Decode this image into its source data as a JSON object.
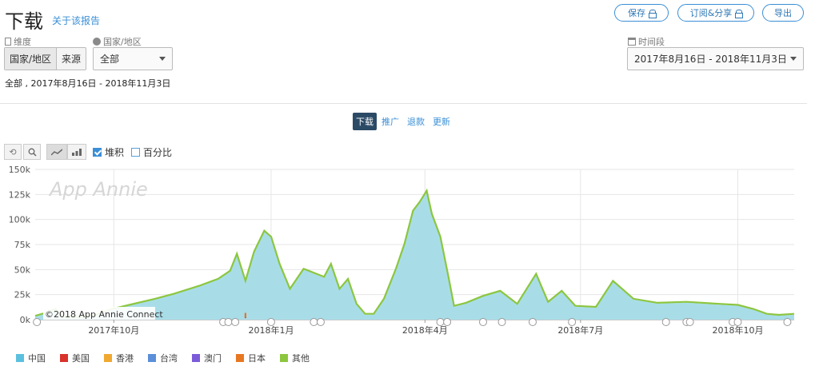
{
  "header": {
    "title": "下载",
    "about_link": "关于该报告",
    "save_label": "保存",
    "subscribe_label": "订阅&分享",
    "export_label": "导出"
  },
  "filters": {
    "dimension_label": "维度",
    "dimension_options": [
      "国家/地区",
      "来源"
    ],
    "country_label": "国家/地区",
    "country_value": "全部",
    "period_label": "时间段",
    "period_value": "2017年8月16日 - 2018年11月3日"
  },
  "summary": "全部 , 2017年8月16日 - 2018年11月3日",
  "tabs": [
    "下载",
    "推广",
    "退款",
    "更新"
  ],
  "active_tab": "下载",
  "toolbar": {
    "stacked_label": "堆积",
    "stacked_checked": true,
    "percent_label": "百分比",
    "percent_checked": false
  },
  "icons": {
    "reset": "undo-icon",
    "zoom": "zoom-icon",
    "line_chart": "line-chart-icon",
    "bar_chart": "bar-chart-icon",
    "lock": "lock-icon",
    "annotation": "speech-bubble-icon"
  },
  "watermark": "App Annie",
  "credit": "©2018 App Annie Connect",
  "colors": {
    "china": "#5bc0de",
    "usa": "#d9332b",
    "hongkong": "#f0a830",
    "taiwan": "#5b8fd9",
    "macau": "#7b5bd9",
    "japan": "#e87722",
    "other": "#8cc63f",
    "area_fill": "#a8dde8",
    "accent": "#3a8fd6"
  },
  "chart_data": {
    "type": "area",
    "stacked": true,
    "ylim": [
      0,
      150000
    ],
    "y_ticks": [
      0,
      25000,
      50000,
      75000,
      100000,
      125000,
      150000
    ],
    "y_tick_labels": [
      "0k",
      "25k",
      "50k",
      "75k",
      "100k",
      "125k",
      "150k"
    ],
    "x_tick_labels": [
      "2017年10月",
      "2018年1月",
      "2018年4月",
      "2018年7月",
      "2018年10月"
    ],
    "x_tick_dates": [
      "2017-10-01",
      "2018-01-01",
      "2018-04-01",
      "2018-07-01",
      "2018-10-01"
    ],
    "xlim": [
      "2017-08-16",
      "2018-11-03"
    ],
    "legend": [
      "中国",
      "美国",
      "香港",
      "台湾",
      "澳门",
      "日本",
      "其他"
    ],
    "series": [
      {
        "name": "中国",
        "points": [
          [
            "2017-08-16",
            3000
          ],
          [
            "2017-08-22",
            6000
          ],
          [
            "2017-08-28",
            10000
          ],
          [
            "2017-09-01",
            2000
          ],
          [
            "2017-09-12",
            2000
          ],
          [
            "2017-09-20",
            4000
          ],
          [
            "2017-09-30",
            10000
          ],
          [
            "2017-10-10",
            14000
          ],
          [
            "2017-10-25",
            20000
          ],
          [
            "2017-11-05",
            25000
          ],
          [
            "2017-11-20",
            33000
          ],
          [
            "2017-12-01",
            40000
          ],
          [
            "2017-12-08",
            48000
          ],
          [
            "2017-12-12",
            65000
          ],
          [
            "2017-12-17",
            38000
          ],
          [
            "2017-12-22",
            67000
          ],
          [
            "2017-12-28",
            88000
          ],
          [
            "2018-01-01",
            82000
          ],
          [
            "2018-01-06",
            55000
          ],
          [
            "2018-01-12",
            30000
          ],
          [
            "2018-01-20",
            50000
          ],
          [
            "2018-02-01",
            42000
          ],
          [
            "2018-02-05",
            55000
          ],
          [
            "2018-02-10",
            30000
          ],
          [
            "2018-02-15",
            40000
          ],
          [
            "2018-02-20",
            15000
          ],
          [
            "2018-02-25",
            5000
          ],
          [
            "2018-03-02",
            5000
          ],
          [
            "2018-03-08",
            20000
          ],
          [
            "2018-03-15",
            50000
          ],
          [
            "2018-03-20",
            75000
          ],
          [
            "2018-03-25",
            108000
          ],
          [
            "2018-03-29",
            117000
          ],
          [
            "2018-04-02",
            128000
          ],
          [
            "2018-04-05",
            105000
          ],
          [
            "2018-04-10",
            82000
          ],
          [
            "2018-04-15",
            40000
          ],
          [
            "2018-04-18",
            13000
          ],
          [
            "2018-04-25",
            16000
          ],
          [
            "2018-05-05",
            23000
          ],
          [
            "2018-05-15",
            28000
          ],
          [
            "2018-05-25",
            15000
          ],
          [
            "2018-06-05",
            45000
          ],
          [
            "2018-06-12",
            17000
          ],
          [
            "2018-06-20",
            28000
          ],
          [
            "2018-06-28",
            13000
          ],
          [
            "2018-07-10",
            12000
          ],
          [
            "2018-07-20",
            38000
          ],
          [
            "2018-08-01",
            20000
          ],
          [
            "2018-08-15",
            16000
          ],
          [
            "2018-09-01",
            17000
          ],
          [
            "2018-09-20",
            15000
          ],
          [
            "2018-10-01",
            14000
          ],
          [
            "2018-10-10",
            10000
          ],
          [
            "2018-10-18",
            5000
          ],
          [
            "2018-10-25",
            4000
          ],
          [
            "2018-11-03",
            5000
          ]
        ]
      },
      {
        "name": "美国",
        "points": [
          [
            "2017-12-17",
            1500
          ]
        ]
      },
      {
        "name": "香港",
        "points": []
      },
      {
        "name": "台湾",
        "points": []
      },
      {
        "name": "澳门",
        "points": []
      },
      {
        "name": "日本",
        "points": [
          [
            "2017-12-17",
            2000
          ]
        ]
      },
      {
        "name": "其他",
        "points": [
          [
            "2017-08-16",
            800
          ],
          [
            "2018-11-03",
            800
          ]
        ]
      }
    ],
    "annotation_dates": [
      "2017-08-17",
      "2017-12-04",
      "2017-12-07",
      "2017-12-11",
      "2018-01-01",
      "2018-01-26",
      "2018-01-30",
      "2018-04-10",
      "2018-04-14",
      "2018-05-05",
      "2018-05-16",
      "2018-06-03",
      "2018-06-26",
      "2018-08-20",
      "2018-09-01",
      "2018-09-03",
      "2018-09-28",
      "2018-10-01",
      "2018-10-30"
    ]
  }
}
